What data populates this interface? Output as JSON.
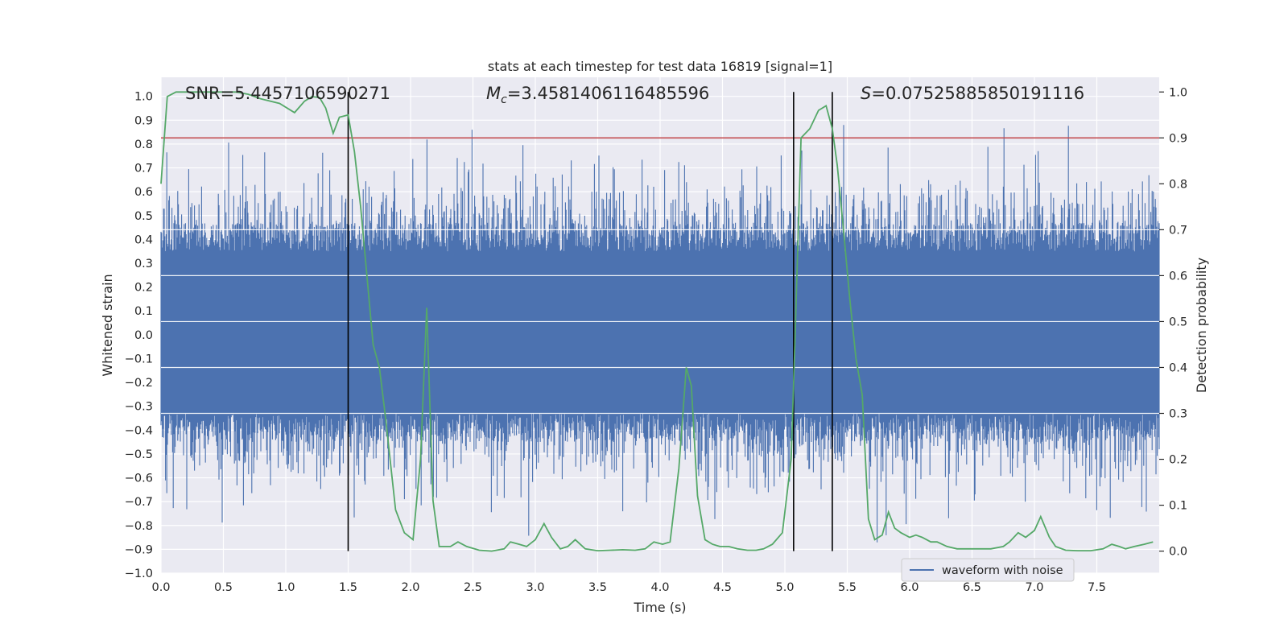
{
  "chart_data": {
    "type": "line",
    "title": "stats at each timestep for test data 16819 [signal=1]",
    "xlabel": "Time (s)",
    "ylabel": "Whitened strain",
    "y2label": "Detection probability",
    "xlim": [
      0,
      8
    ],
    "ylim": [
      -1.0,
      1.08
    ],
    "y2lim": [
      -0.048,
      1.032
    ],
    "x_ticks": [
      0.0,
      0.5,
      1.0,
      1.5,
      2.0,
      2.5,
      3.0,
      3.5,
      4.0,
      4.5,
      5.0,
      5.5,
      6.0,
      6.5,
      7.0,
      7.5
    ],
    "y_ticks": [
      -1.0,
      -0.9,
      -0.8,
      -0.7,
      -0.6,
      -0.5,
      -0.4,
      -0.3,
      -0.2,
      -0.1,
      0.0,
      0.1,
      0.2,
      0.3,
      0.4,
      0.5,
      0.6,
      0.7,
      0.8,
      0.9,
      1.0
    ],
    "y2_ticks": [
      0.0,
      0.1,
      0.2,
      0.3,
      0.4,
      0.5,
      0.6,
      0.7,
      0.8,
      0.9,
      1.0
    ],
    "grid": true,
    "legend_location": "lower-right",
    "annotations": {
      "snr": "SNR=5.4457106590271",
      "mc_symbol": "M",
      "mc_sub": "c",
      "mc_value": "=3.4581406116485596",
      "s_symbol": "S",
      "s_value": "=0.07525885850191116"
    },
    "series": [
      {
        "name": "waveform with noise",
        "axis": "left",
        "color": "#4c72b0",
        "style": "dense noise band, upper envelope approx 0.42-0.6 with spikes to ~1.0, lower envelope approx -0.4 to -0.9"
      },
      {
        "axis": "right",
        "color": "#55a868",
        "x": [
          0.0,
          0.05,
          0.12,
          0.2,
          0.3,
          0.4,
          0.5,
          0.6,
          0.7,
          0.8,
          0.95,
          1.07,
          1.15,
          1.21,
          1.27,
          1.32,
          1.38,
          1.43,
          1.5,
          1.55,
          1.6,
          1.65,
          1.7,
          1.75,
          1.8,
          1.88,
          1.95,
          2.02,
          2.08,
          2.13,
          2.18,
          2.23,
          2.27,
          2.32,
          2.38,
          2.45,
          2.55,
          2.65,
          2.75,
          2.8,
          2.87,
          2.93,
          3.0,
          3.07,
          3.13,
          3.2,
          3.26,
          3.32,
          3.4,
          3.5,
          3.6,
          3.7,
          3.8,
          3.88,
          3.95,
          4.02,
          4.08,
          4.15,
          4.21,
          4.25,
          4.3,
          4.36,
          4.42,
          4.48,
          4.55,
          4.62,
          4.7,
          4.77,
          4.83,
          4.9,
          4.98,
          5.05,
          5.08,
          5.13,
          5.2,
          5.27,
          5.33,
          5.38,
          5.42,
          5.47,
          5.52,
          5.57,
          5.62,
          5.67,
          5.72,
          5.78,
          5.83,
          5.88,
          5.93,
          6.0,
          6.05,
          6.1,
          6.17,
          6.22,
          6.3,
          6.38,
          6.45,
          6.55,
          6.65,
          6.75,
          6.8,
          6.87,
          6.93,
          7.0,
          7.05,
          7.12,
          7.17,
          7.25,
          7.35,
          7.45,
          7.55,
          7.62,
          7.68,
          7.73,
          7.8,
          7.88,
          7.95
        ],
        "y": [
          0.8,
          0.99,
          1.0,
          1.0,
          1.0,
          1.0,
          1.0,
          1.0,
          0.995,
          0.985,
          0.975,
          0.955,
          0.98,
          0.99,
          0.988,
          0.965,
          0.91,
          0.945,
          0.95,
          0.87,
          0.75,
          0.6,
          0.45,
          0.4,
          0.29,
          0.09,
          0.04,
          0.025,
          0.2,
          0.53,
          0.11,
          0.01,
          0.01,
          0.01,
          0.02,
          0.01,
          0.002,
          0.0,
          0.005,
          0.02,
          0.015,
          0.01,
          0.025,
          0.06,
          0.03,
          0.005,
          0.01,
          0.025,
          0.005,
          0.001,
          0.002,
          0.003,
          0.002,
          0.005,
          0.02,
          0.015,
          0.02,
          0.18,
          0.4,
          0.36,
          0.12,
          0.025,
          0.015,
          0.01,
          0.01,
          0.005,
          0.002,
          0.002,
          0.005,
          0.015,
          0.04,
          0.2,
          0.45,
          0.9,
          0.92,
          0.96,
          0.97,
          0.92,
          0.84,
          0.7,
          0.55,
          0.42,
          0.34,
          0.07,
          0.025,
          0.035,
          0.085,
          0.05,
          0.04,
          0.03,
          0.035,
          0.03,
          0.02,
          0.02,
          0.01,
          0.005,
          0.005,
          0.005,
          0.005,
          0.01,
          0.02,
          0.04,
          0.03,
          0.045,
          0.075,
          0.03,
          0.01,
          0.002,
          0.001,
          0.001,
          0.005,
          0.015,
          0.01,
          0.005,
          0.01,
          0.015,
          0.02
        ]
      }
    ],
    "threshold_line": {
      "axis": "right",
      "value": 0.9,
      "color": "#c44e52"
    },
    "vertical_lines": {
      "x": [
        1.5,
        5.07,
        5.38
      ],
      "color": "#000000"
    }
  }
}
